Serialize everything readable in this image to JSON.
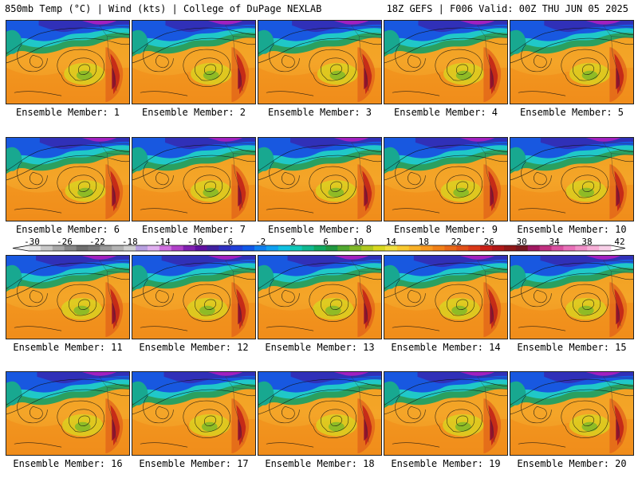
{
  "header": {
    "title_left": "850mb Temp (°C) | Wind (kts) | College of DuPage NEXLAB",
    "title_right": "18Z GEFS | F006 Valid: 00Z THU JUN 05 2025"
  },
  "panels": [
    {
      "label": "Ensemble Member: 1"
    },
    {
      "label": "Ensemble Member: 2"
    },
    {
      "label": "Ensemble Member: 3"
    },
    {
      "label": "Ensemble Member: 4"
    },
    {
      "label": "Ensemble Member: 5"
    },
    {
      "label": "Ensemble Member: 6"
    },
    {
      "label": "Ensemble Member: 7"
    },
    {
      "label": "Ensemble Member: 8"
    },
    {
      "label": "Ensemble Member: 9"
    },
    {
      "label": "Ensemble Member: 10"
    },
    {
      "label": "Ensemble Member: 11"
    },
    {
      "label": "Ensemble Member: 12"
    },
    {
      "label": "Ensemble Member: 13"
    },
    {
      "label": "Ensemble Member: 14"
    },
    {
      "label": "Ensemble Member: 15"
    },
    {
      "label": "Ensemble Member: 16"
    },
    {
      "label": "Ensemble Member: 17"
    },
    {
      "label": "Ensemble Member: 18"
    },
    {
      "label": "Ensemble Member: 19"
    },
    {
      "label": "Ensemble Member: 20"
    }
  ],
  "colorbar": {
    "ticks": [
      "-30",
      "-26",
      "-22",
      "-18",
      "-14",
      "-10",
      "-6",
      "-2",
      "2",
      "6",
      "10",
      "14",
      "18",
      "22",
      "26",
      "30",
      "34",
      "38",
      "42"
    ],
    "colors": [
      "#e8e8e8",
      "#c8c8c8",
      "#a8a8a8",
      "#888888",
      "#6e6e6e",
      "#7a7a7a",
      "#9a9a9a",
      "#b4b4b4",
      "#d0d0d0",
      "#b8a0e0",
      "#e0b0f0",
      "#d070e0",
      "#b040c8",
      "#8020b0",
      "#6010a0",
      "#4020a0",
      "#3030c0",
      "#2040d8",
      "#1058e8",
      "#1080f0",
      "#10a0f0",
      "#10c0e0",
      "#10c8b8",
      "#10b890",
      "#10a860",
      "#209840",
      "#50a830",
      "#80b828",
      "#b0c820",
      "#d8d820",
      "#f0e040",
      "#f8c830",
      "#f8b028",
      "#f89820",
      "#f08018",
      "#e86818",
      "#e05018",
      "#d83818",
      "#c82018",
      "#b01818",
      "#901818",
      "#781820",
      "#a01860",
      "#c03080",
      "#d850a0",
      "#e870b8",
      "#f090c8",
      "#f8b0d8",
      "#f8d0e8"
    ]
  }
}
